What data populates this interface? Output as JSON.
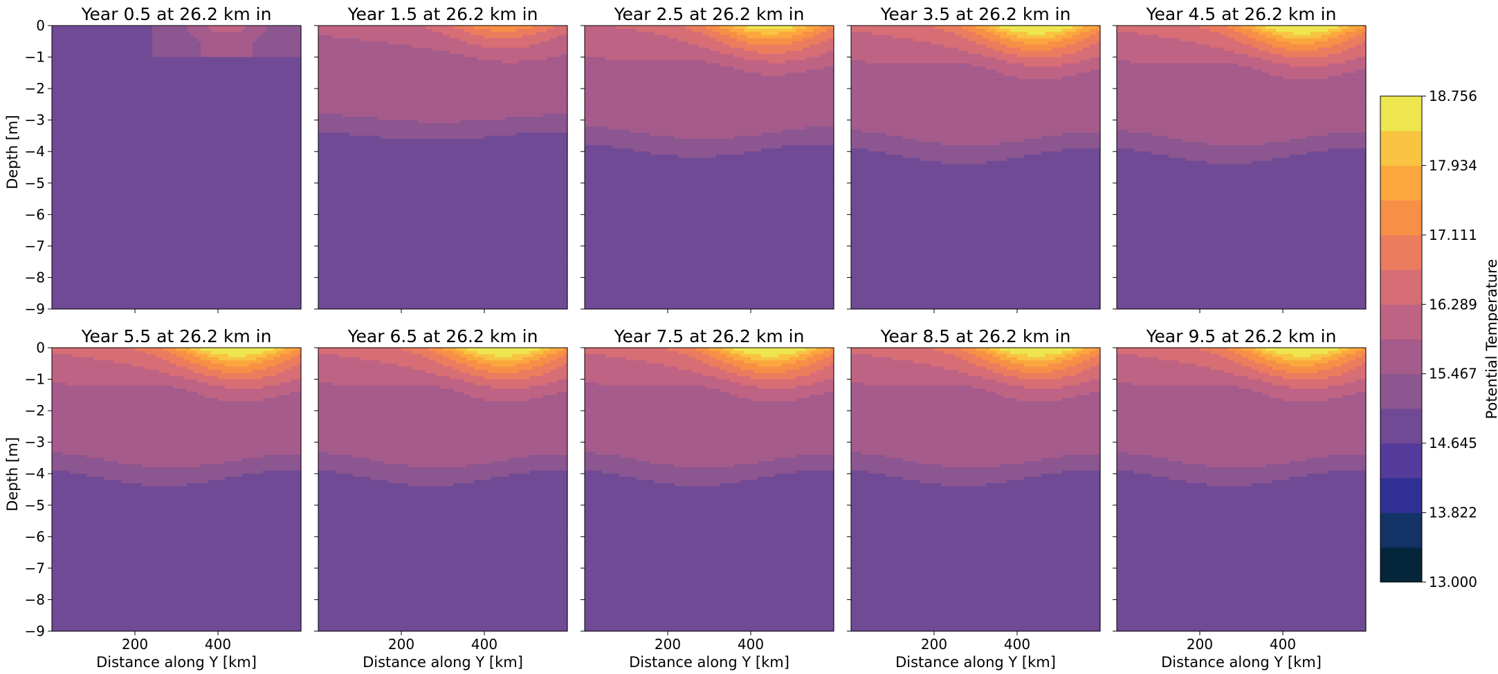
{
  "chart_data": {
    "type": "contourf",
    "colormap": "thermal",
    "panels": [
      {
        "title": "Year 0.5 at 26.2 km in",
        "year": 0.5
      },
      {
        "title": "Year 1.5 at 26.2 km in",
        "year": 1.5
      },
      {
        "title": "Year 2.5 at 26.2 km in",
        "year": 2.5
      },
      {
        "title": "Year 3.5 at 26.2 km in",
        "year": 3.5
      },
      {
        "title": "Year 4.5 at 26.2 km in",
        "year": 4.5
      },
      {
        "title": "Year 5.5 at 26.2 km in",
        "year": 5.5
      },
      {
        "title": "Year 6.5 at 26.2 km in",
        "year": 6.5
      },
      {
        "title": "Year 7.5 at 26.2 km in",
        "year": 7.5
      },
      {
        "title": "Year 8.5 at 26.2 km in",
        "year": 8.5
      },
      {
        "title": "Year 9.5 at 26.2 km in",
        "year": 9.5
      }
    ],
    "xlabel": "Distance along Y [km]",
    "ylabel": "Depth [m]",
    "xlim": [
      0,
      600
    ],
    "ylim": [
      -9,
      0
    ],
    "xticks": [
      200,
      400
    ],
    "xtick_labels": [
      "200",
      "400"
    ],
    "yticks": [
      0,
      -1,
      -2,
      -3,
      -4,
      -5,
      -6,
      -7,
      -8,
      -9
    ],
    "ytick_labels": [
      "0",
      "−1",
      "−2",
      "−3",
      "−4",
      "−5",
      "−6",
      "−7",
      "−8",
      "−9"
    ],
    "colorbar": {
      "label": "Potential Temperature",
      "min": 13.0,
      "max": 18.756,
      "ticks": [
        13.0,
        13.822,
        14.645,
        15.467,
        16.289,
        17.111,
        17.934,
        18.756
      ],
      "tick_labels": [
        "13.000",
        "13.822",
        "14.645",
        "15.467",
        "16.289",
        "17.111",
        "17.934",
        "18.756"
      ],
      "levels": [
        13.0,
        13.411,
        13.822,
        14.234,
        14.645,
        15.056,
        15.467,
        15.878,
        16.289,
        16.701,
        17.111,
        17.523,
        17.934,
        18.345,
        18.756
      ],
      "colors": [
        "#04253a",
        "#133266",
        "#302f94",
        "#553b9b",
        "#704a95",
        "#8c5690",
        "#a55b8b",
        "#bf6384",
        "#d76e75",
        "#ec7c5e",
        "#f78f47",
        "#fba73e",
        "#f8c442",
        "#eee64f"
      ]
    }
  }
}
